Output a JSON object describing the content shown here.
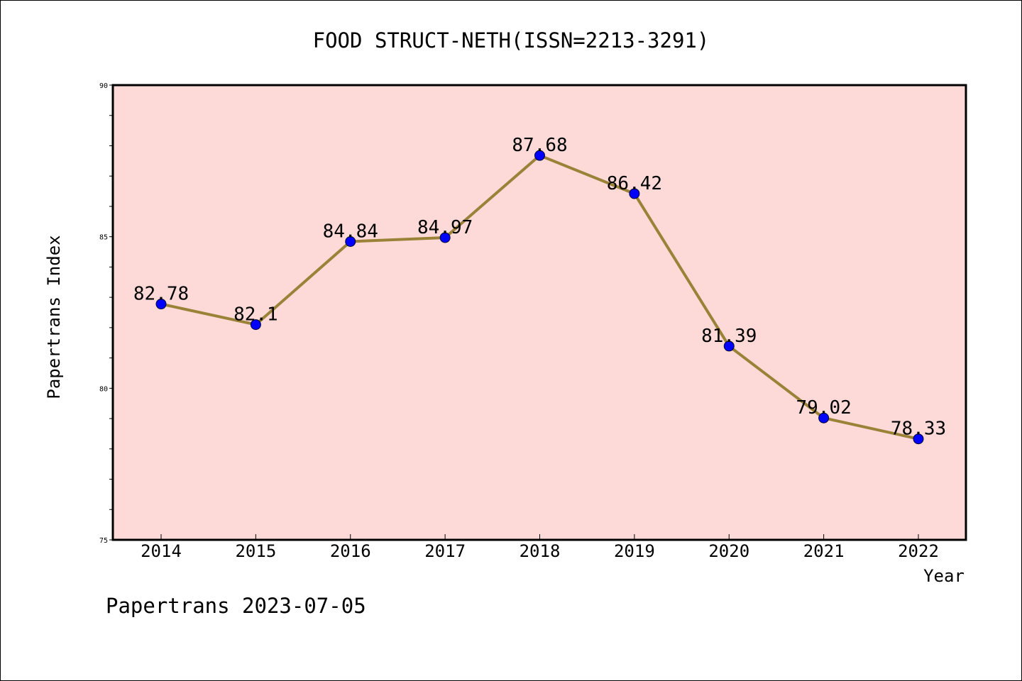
{
  "chart_data": {
    "type": "line",
    "title": "FOOD STRUCT-NETH(ISSN=2213-3291)",
    "xlabel": "Year",
    "ylabel": "Papertrans Index",
    "categories": [
      "2014",
      "2015",
      "2016",
      "2017",
      "2018",
      "2019",
      "2020",
      "2021",
      "2022"
    ],
    "series": [
      {
        "values": [
          82.78,
          82.1,
          84.84,
          84.97,
          87.68,
          86.42,
          81.39,
          79.02,
          78.33
        ],
        "labels": [
          "82.78",
          "82.1",
          "84.84",
          "84.97",
          "87.68",
          "86.42",
          "81.39",
          "79.02",
          "78.33"
        ]
      }
    ],
    "ylim": [
      75,
      90
    ],
    "yticks": [
      "75",
      "80",
      "85",
      "90"
    ],
    "grid": false,
    "colors": {
      "background": "#fddad7",
      "line": "#9a8238",
      "marker": "#0000ff"
    }
  },
  "footer": {
    "text": "Papertrans 2023-07-05"
  }
}
